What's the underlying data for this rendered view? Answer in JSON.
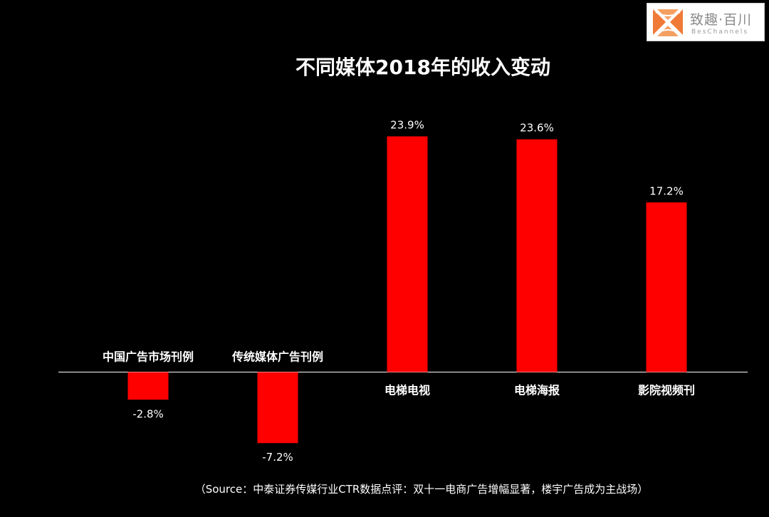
{
  "logo": {
    "cn": "致趣·百川",
    "en": "BesChannels"
  },
  "chart_data": {
    "type": "bar",
    "title": "不同媒体2018年的收入变动",
    "categories": [
      "中国广告市场刊例",
      "传统媒体广告刊例",
      "电梯电视",
      "电梯海报",
      "影院视频刊"
    ],
    "values": [
      -2.8,
      -7.2,
      23.9,
      23.6,
      17.2
    ],
    "value_labels": [
      "-2.8%",
      "-7.2%",
      "23.9%",
      "23.6%",
      "17.2%"
    ],
    "unit": "%",
    "bar_color": "#ff0000",
    "xlabel": "",
    "ylabel": "",
    "grid": false,
    "legend": "none"
  },
  "source": "（Source：中泰证券传媒行业CTR数据点评：双十一电商广告增幅显著，楼宇广告成为主战场）"
}
